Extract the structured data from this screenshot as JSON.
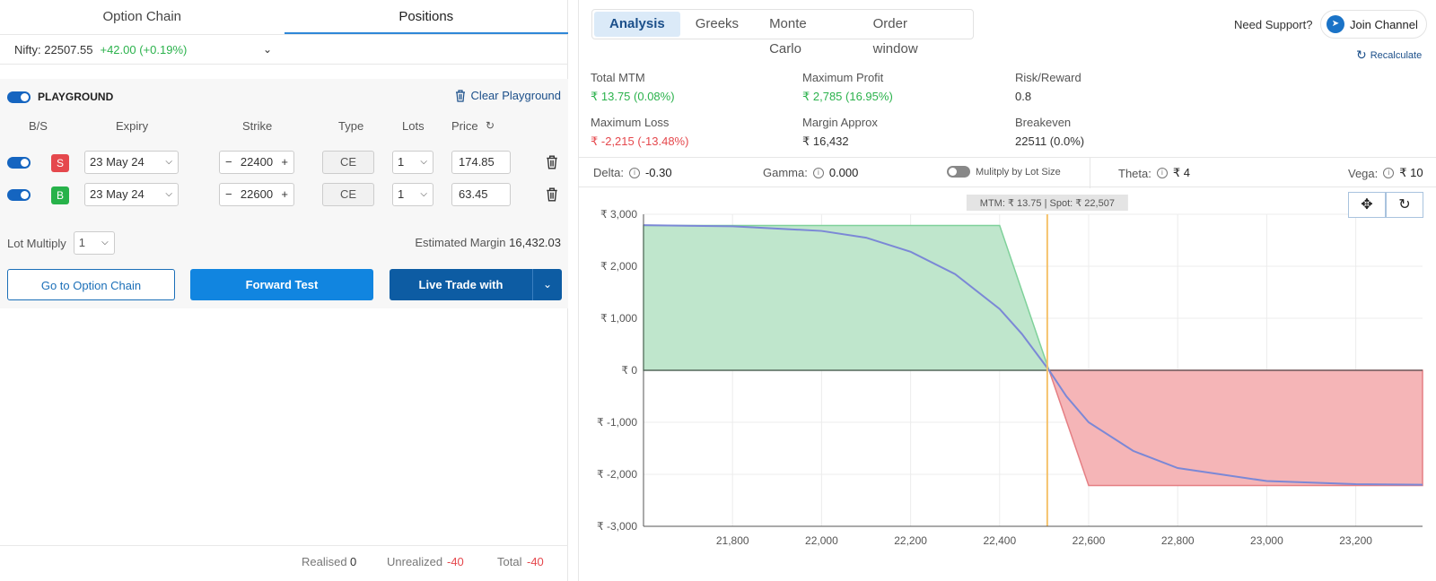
{
  "left": {
    "tabs": [
      "Option Chain",
      "Positions"
    ],
    "nifty": {
      "label": "Nifty:",
      "value": "22507.55",
      "change": "+42.00 (+0.19%)"
    },
    "playground": {
      "title": "PLAYGROUND",
      "clear": "Clear Playground",
      "headers": [
        "B/S",
        "Expiry",
        "Strike",
        "Type",
        "Lots",
        "Price"
      ],
      "rows": [
        {
          "side": "S",
          "expiry": "23 May 24",
          "strike": "22400",
          "type": "CE",
          "lots": "1",
          "price": "174.85"
        },
        {
          "side": "B",
          "expiry": "23 May 24",
          "strike": "22600",
          "type": "CE",
          "lots": "1",
          "price": "63.45"
        }
      ],
      "lot_multiply_label": "Lot Multiply",
      "lot_multiply": "1",
      "est_margin_label": "Estimated Margin",
      "est_margin": "16,432.03",
      "buttons": {
        "option_chain": "Go to Option Chain",
        "forward": "Forward Test",
        "live": "Live Trade with"
      }
    },
    "footer": {
      "realised_label": "Realised",
      "realised": "0",
      "unrealized_label": "Unrealized",
      "unrealized": "-40",
      "total_label": "Total",
      "total": "-40"
    }
  },
  "right": {
    "tabs": [
      "Analysis",
      "Greeks",
      "Monte Carlo",
      "Order window"
    ],
    "support": "Need Support?",
    "join": "Join Channel",
    "recalc": "Recalculate",
    "stats": [
      {
        "label": "Total MTM",
        "value": "₹ 13.75 (0.08%)",
        "color": "#2bb24c"
      },
      {
        "label": "Maximum Profit",
        "value": "₹ 2,785 (16.95%)",
        "color": "#2bb24c"
      },
      {
        "label": "Risk/Reward",
        "value": "0.8",
        "color": "#333333"
      },
      {
        "label": "Maximum Loss",
        "value": "₹ -2,215 (-13.48%)",
        "color": "#e5484d"
      },
      {
        "label": "Margin Approx",
        "value": "₹ 16,432",
        "color": "#333333"
      },
      {
        "label": "Breakeven",
        "value": "22511 (0.0%)",
        "color": "#333333"
      }
    ],
    "greeks": {
      "delta_label": "Delta:",
      "delta": "-0.30",
      "gamma_label": "Gamma:",
      "gamma": "0.000",
      "mult": "Mulitply by Lot Size",
      "theta_label": "Theta:",
      "theta": "₹ 4",
      "vega_label": "Vega:",
      "vega": "₹ 10"
    }
  },
  "chart_data": {
    "type": "area",
    "tooltip": "MTM: ₹ 13.75  |  Spot: ₹ 22,507",
    "xlim": [
      21600,
      23350
    ],
    "ylim": [
      -3000,
      3000
    ],
    "x_ticks": [
      21800,
      22000,
      22200,
      22400,
      22600,
      22800,
      23000,
      23200
    ],
    "x_tick_labels": [
      "21,800",
      "22,000",
      "22,200",
      "22,400",
      "22,600",
      "22,800",
      "23,000",
      "23,200"
    ],
    "y_ticks": [
      3000,
      2000,
      1000,
      0,
      -1000,
      -2000,
      -3000
    ],
    "y_tick_labels": [
      "₹ 3,000",
      "₹ 2,000",
      "₹ 1,000",
      "₹ 0",
      "₹ -1,000",
      "₹ -2,000",
      "₹ -3,000"
    ],
    "spot": 22507,
    "expiry_payoff": {
      "x": [
        21600,
        22400,
        22511,
        22600,
        23350
      ],
      "y": [
        2785,
        2785,
        0,
        -2215,
        -2215
      ]
    },
    "current_pnl": {
      "x": [
        21600,
        21800,
        22000,
        22100,
        22200,
        22300,
        22400,
        22450,
        22511,
        22550,
        22600,
        22700,
        22800,
        23000,
        23200,
        23350
      ],
      "y": [
        2790,
        2770,
        2680,
        2550,
        2280,
        1850,
        1180,
        700,
        0,
        -500,
        -1000,
        -1550,
        -1880,
        -2130,
        -2190,
        -2200
      ]
    },
    "grid": true,
    "colors": {
      "profit": "#bfe6cc",
      "profit_line": "#7fd19a",
      "loss": "#f5b5b7",
      "loss_line": "#e57f84",
      "pnl": "#7b88d6",
      "spot": "#f5c26b"
    }
  }
}
